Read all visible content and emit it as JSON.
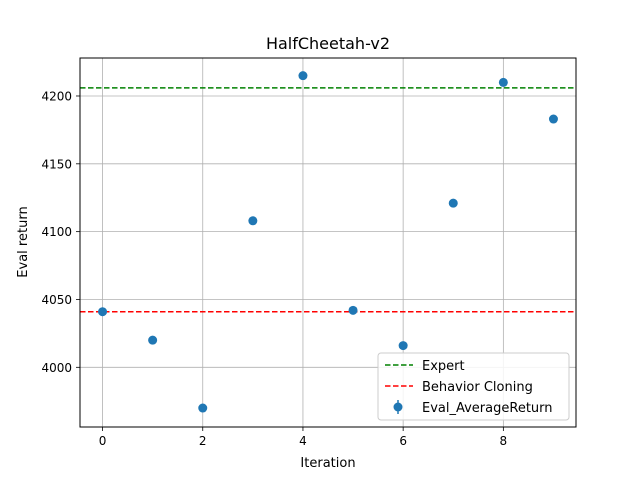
{
  "chart_data": {
    "type": "scatter",
    "title": "HalfCheetah-v2",
    "xlabel": "Iteration",
    "ylabel": "Eval return",
    "xlim": [
      -0.45,
      9.45
    ],
    "ylim": [
      3956,
      4228
    ],
    "xticks": [
      0,
      2,
      4,
      6,
      8
    ],
    "yticks": [
      4000,
      4050,
      4100,
      4150,
      4200
    ],
    "grid": true,
    "legend_position": "lower-right",
    "series": [
      {
        "name": "Eval_AverageReturn",
        "kind": "errorbar-points",
        "color": "#1f77b4",
        "x": [
          0,
          1,
          2,
          3,
          4,
          5,
          6,
          7,
          8,
          9
        ],
        "values": [
          4041,
          4020,
          3970,
          4108,
          4215,
          4042,
          4016,
          4121,
          4210,
          4183
        ]
      }
    ],
    "reference_lines": [
      {
        "name": "Expert",
        "value": 4206,
        "color": "#008000",
        "style": "dashed"
      },
      {
        "name": "Behavior Cloning",
        "value": 4041,
        "color": "#ff0000",
        "style": "dashed"
      }
    ]
  }
}
